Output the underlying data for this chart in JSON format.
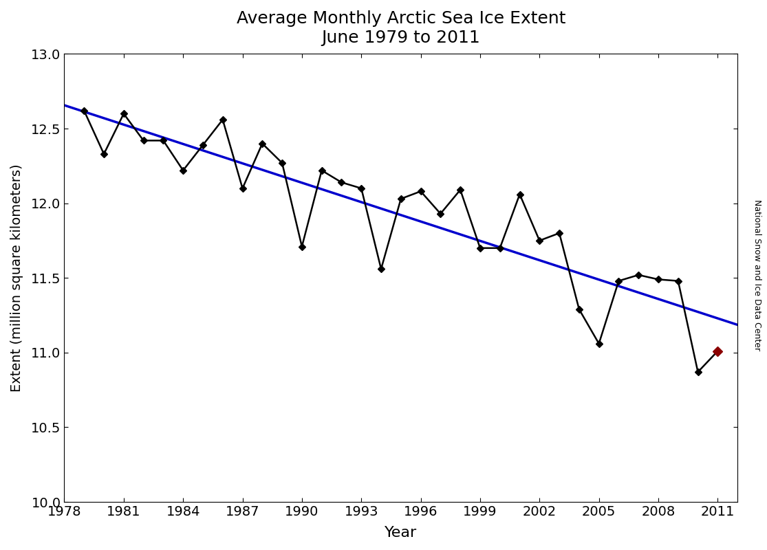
{
  "title": "Average Monthly Arctic Sea Ice Extent\nJune 1979 to 2011",
  "xlabel": "Year",
  "ylabel": "Extent (million square kilometers)",
  "watermark": "National Snow and Ice Data Center",
  "years": [
    1979,
    1980,
    1981,
    1982,
    1983,
    1984,
    1985,
    1986,
    1987,
    1988,
    1989,
    1990,
    1991,
    1992,
    1993,
    1994,
    1995,
    1996,
    1997,
    1998,
    1999,
    2000,
    2001,
    2002,
    2003,
    2004,
    2005,
    2006,
    2007,
    2008,
    2009,
    2010,
    2011
  ],
  "extents": [
    12.62,
    12.33,
    12.6,
    12.42,
    12.42,
    12.22,
    12.39,
    12.56,
    12.1,
    12.4,
    12.27,
    11.71,
    12.22,
    12.14,
    12.1,
    11.56,
    12.03,
    12.08,
    11.93,
    12.09,
    11.7,
    11.7,
    12.06,
    11.75,
    11.8,
    11.29,
    11.06,
    11.48,
    11.52,
    11.49,
    11.48,
    10.87,
    11.01
  ],
  "last_point_color": "#8B0000",
  "line_color": "#000000",
  "trend_color": "#0000CD",
  "xlim": [
    1978,
    2012
  ],
  "ylim": [
    10.0,
    13.0
  ],
  "xticks": [
    1978,
    1981,
    1984,
    1987,
    1990,
    1993,
    1996,
    1999,
    2002,
    2005,
    2008,
    2011
  ],
  "yticks": [
    10.0,
    10.5,
    11.0,
    11.5,
    12.0,
    12.5,
    13.0
  ]
}
